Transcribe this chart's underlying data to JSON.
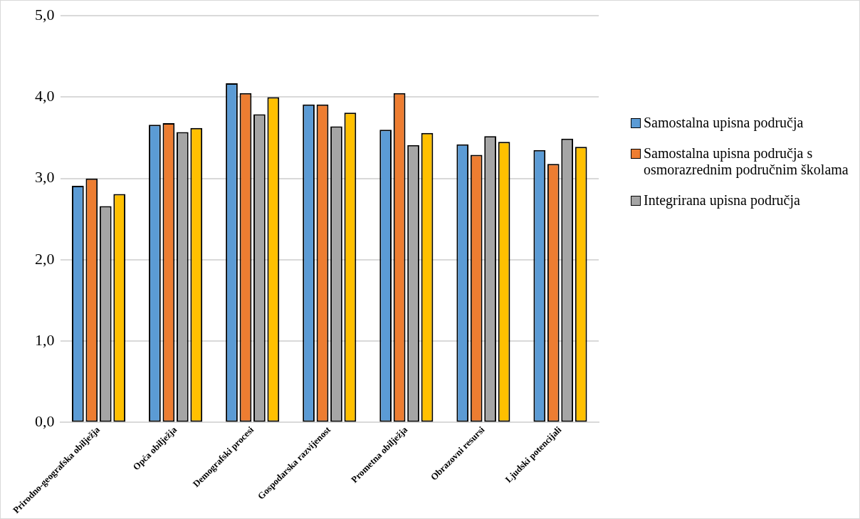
{
  "chart_data": {
    "type": "bar",
    "categories": [
      "Prirodno-geografska obilježja",
      "Opća obilježja",
      "Demografski procesi",
      "Gospodarska razvijenost",
      "Prometna obilježja",
      "Obrazovni resursi",
      "Ljudski potencijali"
    ],
    "series": [
      {
        "name": "Samostalna upisna područja",
        "color": "#5b9bd5",
        "values": [
          2.91,
          3.66,
          4.17,
          3.91,
          3.6,
          3.42,
          3.35
        ]
      },
      {
        "name": "Samostalna upisna područja s osmorazrednim područnim školama",
        "color": "#ed7d31",
        "values": [
          3.0,
          3.68,
          4.05,
          3.91,
          4.05,
          3.29,
          3.18
        ]
      },
      {
        "name": "Integrirana upisna područja",
        "color": "#a5a5a5",
        "values": [
          2.66,
          3.57,
          3.79,
          3.64,
          3.41,
          3.52,
          3.49
        ]
      },
      {
        "color": "#ffc000",
        "values": [
          2.81,
          3.62,
          4.0,
          3.81,
          3.56,
          3.45,
          3.39
        ]
      }
    ],
    "ylim": [
      0,
      5
    ],
    "yticks": [
      {
        "value": 0,
        "label": "0,0"
      },
      {
        "value": 1,
        "label": "1,0"
      },
      {
        "value": 2,
        "label": "2,0"
      },
      {
        "value": 3,
        "label": "3,0"
      },
      {
        "value": 4,
        "label": "4,0"
      },
      {
        "value": 5,
        "label": "5,0"
      }
    ],
    "grid": "y",
    "legend": "right"
  }
}
